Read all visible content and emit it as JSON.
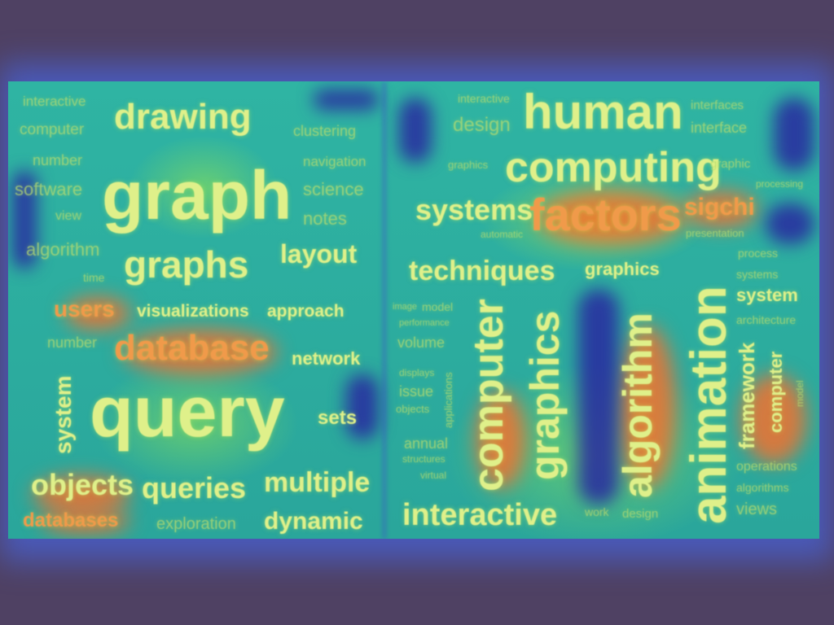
{
  "left_cloud": {
    "words": [
      "interactive",
      "drawing",
      "computer",
      "clustering",
      "number",
      "navigation",
      "graph",
      "software",
      "science",
      "view",
      "notes",
      "algorithm",
      "layout",
      "graphs",
      "time",
      "users",
      "visualizations",
      "approach",
      "number",
      "database",
      "network",
      "system",
      "query",
      "sets",
      "objects",
      "queries",
      "multiple",
      "databases",
      "exploration",
      "dynamic"
    ]
  },
  "right_cloud": {
    "words": [
      "interactive",
      "human",
      "interfaces",
      "design",
      "interface",
      "graphics",
      "computing",
      "graphic",
      "processing",
      "systems",
      "factors",
      "sigchi",
      "automatic",
      "presentation",
      "techniques",
      "graphics",
      "process",
      "systems",
      "image",
      "model",
      "system",
      "performance",
      "volume",
      "architecture",
      "computer",
      "graphics",
      "algorithm",
      "animation",
      "displays",
      "applications",
      "issue",
      "objects",
      "framework",
      "computer",
      "model",
      "annual",
      "structures",
      "virtual",
      "operations",
      "algorithms",
      "interactive",
      "work",
      "design",
      "views"
    ]
  },
  "colors": {
    "background": "#4f4163",
    "glow": "#466eff",
    "heat_low": "#2aa69b",
    "heat_mid": "#96e650",
    "heat_high": "#ff6e28",
    "word": "#dff08a"
  }
}
